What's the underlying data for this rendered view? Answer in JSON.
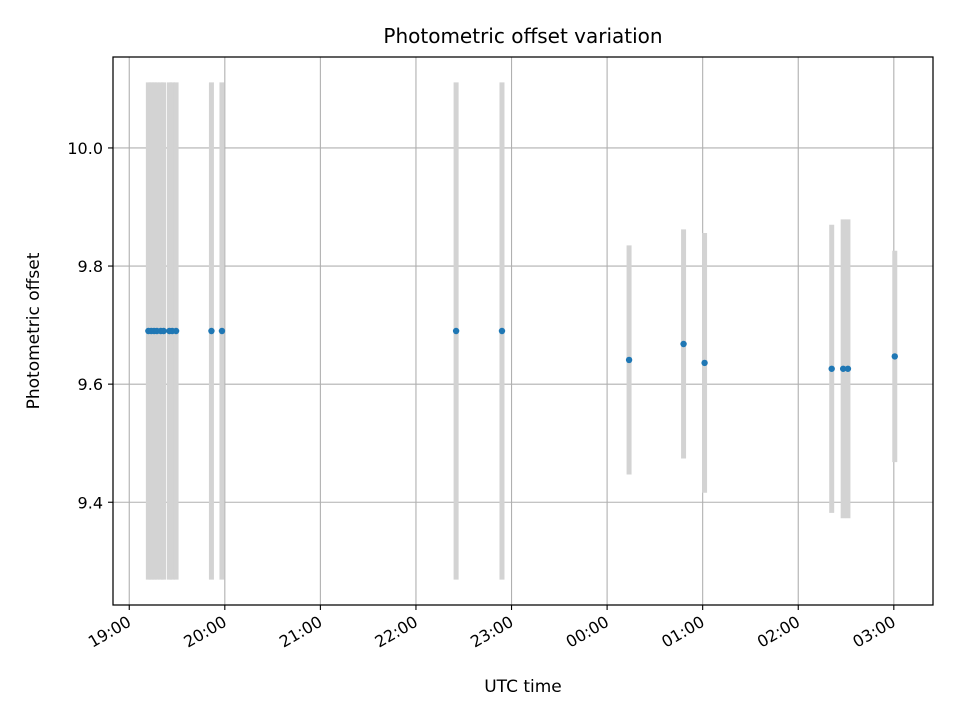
{
  "chart_data": {
    "type": "scatter",
    "title": "Photometric offset variation",
    "xlabel": "UTC time",
    "ylabel": "Photometric offset",
    "x_unit": "hours",
    "xlim": [
      18.83,
      27.41
    ],
    "ylim": [
      9.226,
      10.154
    ],
    "x_ticks": [
      {
        "value": 19,
        "label": "19:00"
      },
      {
        "value": 20,
        "label": "20:00"
      },
      {
        "value": 21,
        "label": "21:00"
      },
      {
        "value": 22,
        "label": "22:00"
      },
      {
        "value": 23,
        "label": "23:00"
      },
      {
        "value": 24,
        "label": "00:00"
      },
      {
        "value": 25,
        "label": "01:00"
      },
      {
        "value": 26,
        "label": "02:00"
      },
      {
        "value": 27,
        "label": "03:00"
      }
    ],
    "y_ticks": [
      {
        "value": 9.4,
        "label": "9.4"
      },
      {
        "value": 9.6,
        "label": "9.6"
      },
      {
        "value": 9.8,
        "label": "9.8"
      },
      {
        "value": 10.0,
        "label": "10.0"
      }
    ],
    "grid": true,
    "colors": {
      "point": "#1f77b4",
      "errorbar": "#d3d3d3",
      "grid": "#b0b0b0"
    },
    "points": [
      {
        "x": 19.2,
        "y": 9.69,
        "err": 0.421
      },
      {
        "x": 19.23,
        "y": 9.69,
        "err": 0.421
      },
      {
        "x": 19.26,
        "y": 9.69,
        "err": 0.421
      },
      {
        "x": 19.29,
        "y": 9.69,
        "err": 0.421
      },
      {
        "x": 19.33,
        "y": 9.69,
        "err": 0.421
      },
      {
        "x": 19.36,
        "y": 9.69,
        "err": 0.421
      },
      {
        "x": 19.42,
        "y": 9.69,
        "err": 0.421
      },
      {
        "x": 19.45,
        "y": 9.69,
        "err": 0.421
      },
      {
        "x": 19.49,
        "y": 9.69,
        "err": 0.421
      },
      {
        "x": 19.86,
        "y": 9.69,
        "err": 0.421
      },
      {
        "x": 19.97,
        "y": 9.69,
        "err": 0.421
      },
      {
        "x": 22.42,
        "y": 9.69,
        "err": 0.421
      },
      {
        "x": 22.9,
        "y": 9.69,
        "err": 0.421
      },
      {
        "x": 24.23,
        "y": 9.641,
        "err": 0.194
      },
      {
        "x": 24.8,
        "y": 9.668,
        "err": 0.194
      },
      {
        "x": 25.02,
        "y": 9.636,
        "err": 0.22
      },
      {
        "x": 26.35,
        "y": 9.626,
        "err": 0.244
      },
      {
        "x": 26.47,
        "y": 9.626,
        "err": 0.253
      },
      {
        "x": 26.52,
        "y": 9.626,
        "err": 0.253
      },
      {
        "x": 27.01,
        "y": 9.647,
        "err": 0.179
      }
    ]
  }
}
